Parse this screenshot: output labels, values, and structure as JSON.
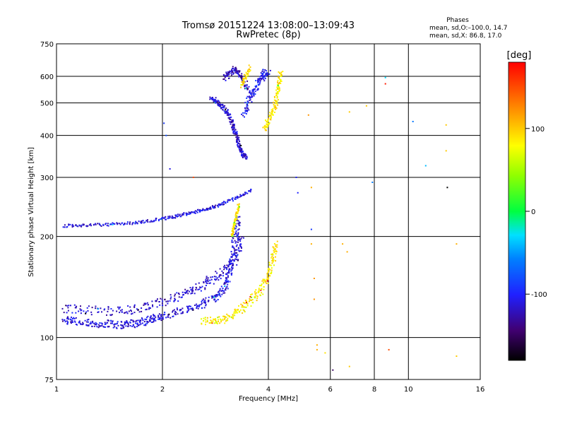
{
  "chart_data": {
    "type": "scatter",
    "title": "Tromsø 20151224 13:08:00–13:09:43",
    "subtitle": "RwPretec (8p)",
    "xlabel": "Frequency [MHz]",
    "ylabel": "Stationary phase Virtual Height [km]",
    "x_scale": "log2",
    "y_scale": "log",
    "xlim": [
      1,
      16
    ],
    "ylim": [
      75,
      750
    ],
    "x_ticks": [
      1,
      2,
      4,
      6,
      8,
      10,
      16
    ],
    "x_tick_labels": [
      "1",
      "2",
      "4",
      "6",
      "8",
      "10",
      "16"
    ],
    "y_ticks": [
      75,
      100,
      200,
      300,
      400,
      500,
      600,
      750
    ],
    "y_tick_labels": [
      "75",
      "100",
      "200",
      "300",
      "400",
      "500",
      "600",
      "750"
    ],
    "grid": true,
    "phase_note": {
      "title": "Phases",
      "line1": "mean, sd,O:–100.0, 14.7",
      "line2": "mean, sd,X:  86.8, 17.0"
    },
    "colorbar": {
      "label": "[deg]",
      "range": [
        -180,
        180
      ],
      "ticks": [
        100,
        0,
        -100
      ],
      "tick_labels": [
        "100",
        "0",
        "-100"
      ],
      "colormap": "rainbow"
    },
    "traces": [
      {
        "component": "O",
        "points": [
          [
            1.05,
            113
          ],
          [
            1.1,
            112
          ],
          [
            1.2,
            111
          ],
          [
            1.3,
            110
          ],
          [
            1.4,
            110
          ],
          [
            1.5,
            109
          ],
          [
            1.6,
            110
          ],
          [
            1.7,
            110
          ],
          [
            1.8,
            112
          ],
          [
            1.9,
            114
          ],
          [
            2.0,
            116
          ],
          [
            2.2,
            119
          ],
          [
            2.4,
            122
          ],
          [
            2.6,
            126
          ],
          [
            2.8,
            130
          ],
          [
            2.95,
            136
          ],
          [
            3.05,
            145
          ],
          [
            3.1,
            158
          ],
          [
            3.15,
            170
          ],
          [
            3.2,
            190
          ],
          [
            3.25,
            210
          ],
          [
            3.3,
            230
          ]
        ],
        "phase": -110,
        "spread": 0.05
      },
      {
        "component": "O",
        "points": [
          [
            1.05,
            122
          ],
          [
            1.2,
            121
          ],
          [
            1.4,
            120
          ],
          [
            1.6,
            121
          ],
          [
            1.8,
            124
          ],
          [
            2.0,
            128
          ],
          [
            2.2,
            132
          ],
          [
            2.4,
            137
          ],
          [
            2.6,
            143
          ],
          [
            2.8,
            150
          ],
          [
            3.0,
            158
          ],
          [
            3.2,
            170
          ],
          [
            3.3,
            185
          ],
          [
            3.35,
            200
          ]
        ],
        "phase": -115,
        "spread": 0.06
      },
      {
        "component": "O",
        "points": [
          [
            1.05,
            215
          ],
          [
            1.2,
            216
          ],
          [
            1.4,
            217
          ],
          [
            1.6,
            219
          ],
          [
            1.8,
            222
          ],
          [
            2.0,
            226
          ],
          [
            2.2,
            230
          ],
          [
            2.4,
            235
          ],
          [
            2.6,
            240
          ],
          [
            2.8,
            245
          ],
          [
            3.0,
            252
          ],
          [
            3.3,
            262
          ],
          [
            3.6,
            275
          ]
        ],
        "phase": -110,
        "spread": 0.02
      },
      {
        "component": "O",
        "points": [
          [
            2.75,
            520
          ],
          [
            2.85,
            505
          ],
          [
            2.95,
            490
          ],
          [
            3.05,
            470
          ],
          [
            3.15,
            440
          ],
          [
            3.2,
            415
          ],
          [
            3.25,
            395
          ],
          [
            3.3,
            375
          ],
          [
            3.35,
            360
          ],
          [
            3.4,
            350
          ],
          [
            3.45,
            345
          ]
        ],
        "phase": -115,
        "spread": 0.03
      },
      {
        "component": "O",
        "points": [
          [
            3.4,
            460
          ],
          [
            3.5,
            500
          ],
          [
            3.6,
            530
          ],
          [
            3.7,
            560
          ],
          [
            3.8,
            590
          ],
          [
            3.9,
            610
          ],
          [
            4.0,
            620
          ]
        ],
        "phase": -105,
        "spread": 0.05
      },
      {
        "component": "O",
        "points": [
          [
            3.0,
            590
          ],
          [
            3.1,
            610
          ],
          [
            3.2,
            630
          ],
          [
            3.3,
            610
          ],
          [
            3.4,
            580
          ],
          [
            3.5,
            550
          ]
        ],
        "phase": -120,
        "spread": 0.04
      },
      {
        "component": "X",
        "points": [
          [
            2.6,
            112
          ],
          [
            2.8,
            112
          ],
          [
            3.0,
            113
          ],
          [
            3.2,
            117
          ],
          [
            3.4,
            123
          ],
          [
            3.6,
            130
          ],
          [
            3.8,
            138
          ],
          [
            3.95,
            148
          ],
          [
            4.05,
            160
          ],
          [
            4.15,
            175
          ],
          [
            4.2,
            190
          ]
        ],
        "phase": 85,
        "spread": 0.05
      },
      {
        "component": "X",
        "points": [
          [
            3.15,
            200
          ],
          [
            3.2,
            215
          ],
          [
            3.25,
            232
          ],
          [
            3.3,
            250
          ]
        ],
        "phase": 90,
        "spread": 0.02
      },
      {
        "component": "X",
        "points": [
          [
            3.9,
            420
          ],
          [
            4.0,
            440
          ],
          [
            4.1,
            470
          ],
          [
            4.2,
            500
          ],
          [
            4.25,
            540
          ],
          [
            4.3,
            580
          ],
          [
            4.35,
            620
          ]
        ],
        "phase": 90,
        "spread": 0.04
      },
      {
        "component": "X",
        "points": [
          [
            3.35,
            560
          ],
          [
            3.45,
            600
          ],
          [
            3.55,
            640
          ]
        ],
        "phase": 95,
        "spread": 0.03
      }
    ],
    "isolated_points": [
      [
        2.02,
        435,
        -90
      ],
      [
        2.05,
        400,
        -80
      ],
      [
        2.1,
        318,
        -110
      ],
      [
        2.45,
        300,
        150
      ],
      [
        4.8,
        300,
        -100
      ],
      [
        4.85,
        270,
        -100
      ],
      [
        5.2,
        460,
        120
      ],
      [
        5.3,
        280,
        110
      ],
      [
        5.3,
        210,
        -90
      ],
      [
        5.3,
        190,
        110
      ],
      [
        5.4,
        150,
        120
      ],
      [
        5.4,
        130,
        120
      ],
      [
        5.5,
        95,
        110
      ],
      [
        5.5,
        92,
        110
      ],
      [
        5.8,
        90,
        90
      ],
      [
        6.1,
        80,
        -150
      ],
      [
        6.5,
        190,
        110
      ],
      [
        6.7,
        180,
        110
      ],
      [
        6.8,
        470,
        100
      ],
      [
        6.8,
        82,
        100
      ],
      [
        7.6,
        490,
        100
      ],
      [
        7.9,
        290,
        -60
      ],
      [
        8.6,
        595,
        -30
      ],
      [
        8.6,
        570,
        170
      ],
      [
        8.8,
        92,
        150
      ],
      [
        10.3,
        440,
        -60
      ],
      [
        11.2,
        325,
        -40
      ],
      [
        12.8,
        430,
        100
      ],
      [
        12.8,
        360,
        100
      ],
      [
        12.9,
        280,
        -180
      ],
      [
        13.7,
        190,
        110
      ],
      [
        13.7,
        88,
        100
      ]
    ]
  }
}
